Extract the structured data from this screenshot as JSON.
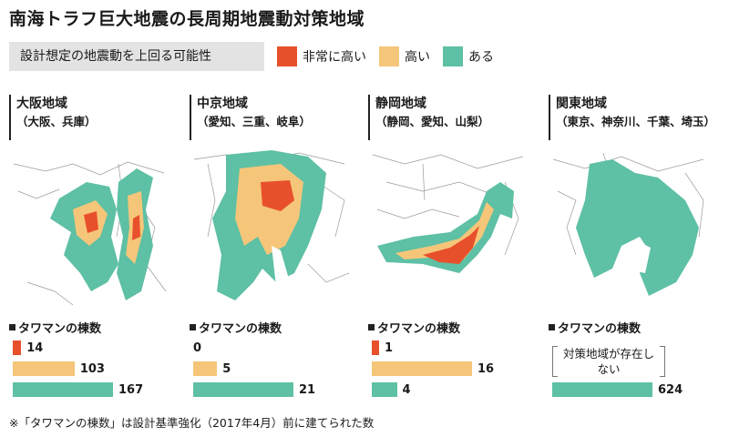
{
  "title": "南海トラフ巨大地震の長周期地震動対策地域",
  "legend": {
    "caption": "設計想定の地震動を上回る可能性",
    "items": [
      {
        "label": "非常に高い",
        "color": "#e8502c"
      },
      {
        "label": "高い",
        "color": "#f5c679"
      },
      {
        "label": "ある",
        "color": "#5ec0a4"
      }
    ]
  },
  "count_heading": "タワマンの棟数",
  "regions": [
    {
      "name": "大阪地域",
      "sub": "（大阪、兵庫）",
      "counts": [
        {
          "level": "非常に高い",
          "value": "14",
          "n": 14
        },
        {
          "level": "高い",
          "value": "103",
          "n": 103
        },
        {
          "level": "ある",
          "value": "167",
          "n": 167
        }
      ]
    },
    {
      "name": "中京地域",
      "sub": "（愛知、三重、岐阜）",
      "counts": [
        {
          "level": "非常に高い",
          "value": "0",
          "n": 0
        },
        {
          "level": "高い",
          "value": "5",
          "n": 5
        },
        {
          "level": "ある",
          "value": "21",
          "n": 21
        }
      ]
    },
    {
      "name": "静岡地域",
      "sub": "（静岡、愛知、山梨）",
      "counts": [
        {
          "level": "非常に高い",
          "value": "1",
          "n": 1
        },
        {
          "level": "高い",
          "value": "16",
          "n": 16
        },
        {
          "level": "ある",
          "value": "4",
          "n": 4
        }
      ]
    },
    {
      "name": "関東地域",
      "sub": "（東京、神奈川、千葉、埼玉）",
      "no_area_note": "対策地域が存在しない",
      "counts": [
        {
          "level": "ある",
          "value": "624",
          "n": 624
        }
      ]
    }
  ],
  "footnote": "※「タワマンの棟数」は設計基準強化（2017年4月）前に建てられた数"
}
